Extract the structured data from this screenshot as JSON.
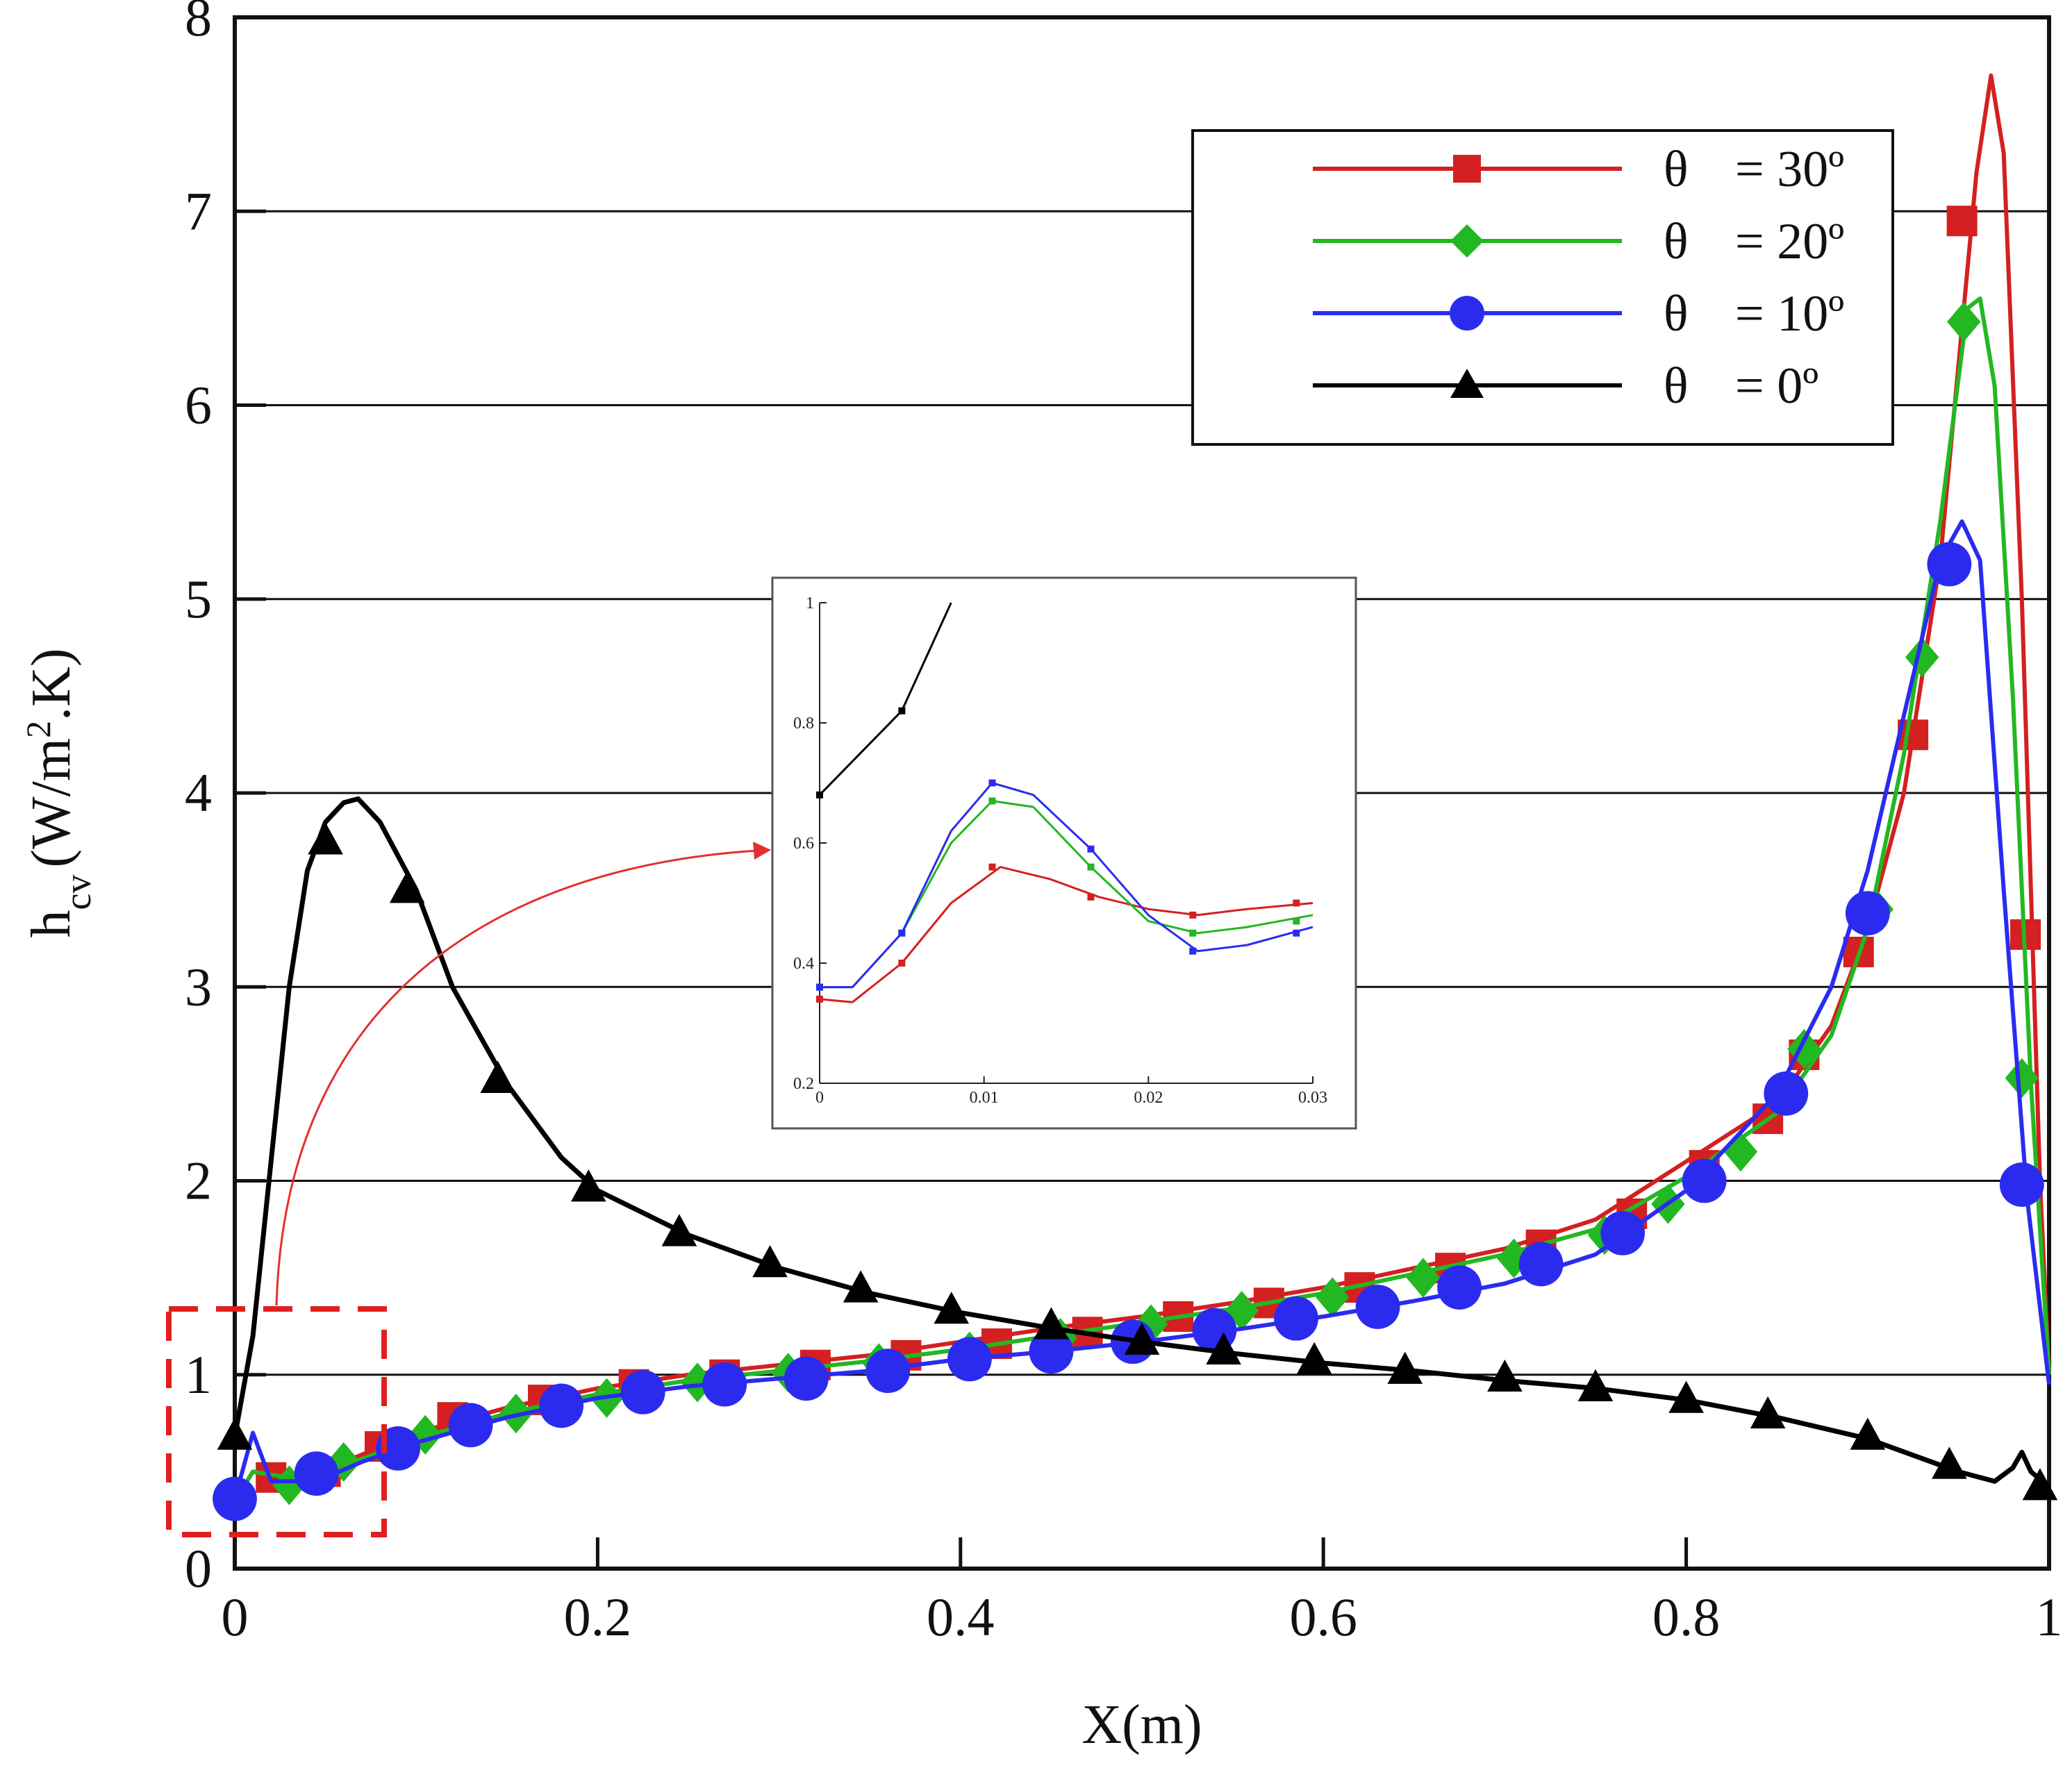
{
  "chart_data": {
    "type": "line",
    "title": "",
    "xlabel": "X(m)",
    "ylabel": "h_cv (W/m^2.K)",
    "ylabel_parts": {
      "base": "h",
      "sub": "cv",
      "unit_pre": "(W/m",
      "sup": "2",
      "unit_post": ".K)"
    },
    "xlim": [
      0,
      1
    ],
    "ylim": [
      0,
      8
    ],
    "xticks": [
      "0",
      "0.2",
      "0.4",
      "0.6",
      "0.8",
      "1"
    ],
    "yticks": [
      "0",
      "1",
      "2",
      "3",
      "4",
      "5",
      "6",
      "7",
      "8"
    ],
    "grid": "horizontal",
    "legend_position": "top-right",
    "series": [
      {
        "name": "θ = 30º",
        "symbol": "θ",
        "value_text": "= 30º",
        "color": "#d42020",
        "marker": "square",
        "curve": [
          [
            0,
            0.35
          ],
          [
            0.01,
            0.5
          ],
          [
            0.03,
            0.48
          ],
          [
            0.06,
            0.55
          ],
          [
            0.1,
            0.7
          ],
          [
            0.15,
            0.83
          ],
          [
            0.2,
            0.93
          ],
          [
            0.25,
            1.0
          ],
          [
            0.3,
            1.05
          ],
          [
            0.35,
            1.1
          ],
          [
            0.4,
            1.17
          ],
          [
            0.45,
            1.24
          ],
          [
            0.5,
            1.3
          ],
          [
            0.55,
            1.37
          ],
          [
            0.6,
            1.45
          ],
          [
            0.65,
            1.55
          ],
          [
            0.7,
            1.65
          ],
          [
            0.75,
            1.8
          ],
          [
            0.8,
            2.1
          ],
          [
            0.85,
            2.4
          ],
          [
            0.88,
            2.8
          ],
          [
            0.9,
            3.3
          ],
          [
            0.92,
            4.0
          ],
          [
            0.94,
            5.2
          ],
          [
            0.96,
            7.2
          ],
          [
            0.968,
            7.7
          ],
          [
            0.975,
            7.3
          ],
          [
            0.985,
            5.0
          ],
          [
            0.995,
            2.0
          ],
          [
            1.0,
            1.0
          ]
        ],
        "markers": [
          [
            0.02,
            0.47
          ],
          [
            0.05,
            0.5
          ],
          [
            0.08,
            0.63
          ],
          [
            0.12,
            0.78
          ],
          [
            0.17,
            0.87
          ],
          [
            0.22,
            0.95
          ],
          [
            0.27,
            1.0
          ],
          [
            0.32,
            1.05
          ],
          [
            0.37,
            1.1
          ],
          [
            0.42,
            1.16
          ],
          [
            0.47,
            1.22
          ],
          [
            0.52,
            1.3
          ],
          [
            0.57,
            1.37
          ],
          [
            0.62,
            1.45
          ],
          [
            0.67,
            1.55
          ],
          [
            0.72,
            1.67
          ],
          [
            0.77,
            1.83
          ],
          [
            0.81,
            2.08
          ],
          [
            0.845,
            2.32
          ],
          [
            0.865,
            2.65
          ],
          [
            0.895,
            3.18
          ],
          [
            0.925,
            4.3
          ],
          [
            0.952,
            6.95
          ],
          [
            0.987,
            3.27
          ]
        ]
      },
      {
        "name": "θ = 20º",
        "symbol": "θ",
        "value_text": "= 20º",
        "color": "#22b822",
        "marker": "diamond",
        "curve": [
          [
            0,
            0.35
          ],
          [
            0.01,
            0.5
          ],
          [
            0.03,
            0.47
          ],
          [
            0.06,
            0.53
          ],
          [
            0.1,
            0.67
          ],
          [
            0.15,
            0.8
          ],
          [
            0.2,
            0.9
          ],
          [
            0.25,
            0.97
          ],
          [
            0.3,
            1.02
          ],
          [
            0.35,
            1.07
          ],
          [
            0.4,
            1.13
          ],
          [
            0.45,
            1.2
          ],
          [
            0.5,
            1.27
          ],
          [
            0.55,
            1.34
          ],
          [
            0.6,
            1.42
          ],
          [
            0.65,
            1.52
          ],
          [
            0.7,
            1.62
          ],
          [
            0.75,
            1.75
          ],
          [
            0.8,
            2.02
          ],
          [
            0.85,
            2.35
          ],
          [
            0.88,
            2.75
          ],
          [
            0.9,
            3.3
          ],
          [
            0.92,
            4.2
          ],
          [
            0.94,
            5.4
          ],
          [
            0.955,
            6.5
          ],
          [
            0.962,
            6.55
          ],
          [
            0.97,
            6.1
          ],
          [
            0.98,
            4.5
          ],
          [
            0.99,
            2.5
          ],
          [
            1.0,
            1.0
          ]
        ],
        "markers": [
          [
            0.03,
            0.43
          ],
          [
            0.06,
            0.55
          ],
          [
            0.105,
            0.69
          ],
          [
            0.155,
            0.8
          ],
          [
            0.205,
            0.88
          ],
          [
            0.255,
            0.96
          ],
          [
            0.305,
            1.01
          ],
          [
            0.355,
            1.06
          ],
          [
            0.405,
            1.12
          ],
          [
            0.455,
            1.19
          ],
          [
            0.505,
            1.26
          ],
          [
            0.555,
            1.33
          ],
          [
            0.605,
            1.4
          ],
          [
            0.655,
            1.5
          ],
          [
            0.705,
            1.6
          ],
          [
            0.755,
            1.72
          ],
          [
            0.79,
            1.88
          ],
          [
            0.83,
            2.15
          ],
          [
            0.865,
            2.68
          ],
          [
            0.905,
            3.4
          ],
          [
            0.93,
            4.7
          ],
          [
            0.953,
            6.43
          ],
          [
            0.985,
            2.53
          ]
        ]
      },
      {
        "name": "θ = 10º",
        "symbol": "θ",
        "value_text": "= 10º",
        "color": "#2b2bf0",
        "marker": "circle",
        "curve": [
          [
            0,
            0.36
          ],
          [
            0.01,
            0.7
          ],
          [
            0.02,
            0.45
          ],
          [
            0.045,
            0.45
          ],
          [
            0.07,
            0.55
          ],
          [
            0.1,
            0.65
          ],
          [
            0.15,
            0.78
          ],
          [
            0.2,
            0.88
          ],
          [
            0.25,
            0.94
          ],
          [
            0.3,
            0.98
          ],
          [
            0.35,
            1.02
          ],
          [
            0.4,
            1.08
          ],
          [
            0.45,
            1.12
          ],
          [
            0.5,
            1.17
          ],
          [
            0.55,
            1.23
          ],
          [
            0.6,
            1.3
          ],
          [
            0.65,
            1.38
          ],
          [
            0.7,
            1.47
          ],
          [
            0.75,
            1.62
          ],
          [
            0.8,
            1.95
          ],
          [
            0.85,
            2.45
          ],
          [
            0.88,
            3.0
          ],
          [
            0.9,
            3.6
          ],
          [
            0.92,
            4.4
          ],
          [
            0.94,
            5.2
          ],
          [
            0.952,
            5.4
          ],
          [
            0.962,
            5.2
          ],
          [
            0.975,
            3.5
          ],
          [
            0.988,
            1.9
          ],
          [
            1.0,
            0.95
          ]
        ],
        "markers": [
          [
            0,
            0.36
          ],
          [
            0.045,
            0.49
          ],
          [
            0.09,
            0.62
          ],
          [
            0.13,
            0.74
          ],
          [
            0.18,
            0.84
          ],
          [
            0.225,
            0.91
          ],
          [
            0.27,
            0.95
          ],
          [
            0.315,
            0.98
          ],
          [
            0.36,
            1.02
          ],
          [
            0.405,
            1.08
          ],
          [
            0.45,
            1.12
          ],
          [
            0.495,
            1.17
          ],
          [
            0.54,
            1.23
          ],
          [
            0.585,
            1.29
          ],
          [
            0.63,
            1.35
          ],
          [
            0.675,
            1.45
          ],
          [
            0.72,
            1.57
          ],
          [
            0.765,
            1.73
          ],
          [
            0.81,
            2.0
          ],
          [
            0.855,
            2.45
          ],
          [
            0.9,
            3.38
          ],
          [
            0.945,
            5.18
          ],
          [
            0.985,
            1.98
          ]
        ]
      },
      {
        "name": "θ = 0º",
        "symbol": "θ",
        "value_text": "= 0º",
        "color": "#000000",
        "marker": "triangle",
        "curve": [
          [
            0,
            0.68
          ],
          [
            0.01,
            1.2
          ],
          [
            0.02,
            2.1
          ],
          [
            0.03,
            3.0
          ],
          [
            0.04,
            3.6
          ],
          [
            0.05,
            3.85
          ],
          [
            0.06,
            3.95
          ],
          [
            0.068,
            3.97
          ],
          [
            0.08,
            3.85
          ],
          [
            0.1,
            3.5
          ],
          [
            0.12,
            3.0
          ],
          [
            0.15,
            2.5
          ],
          [
            0.18,
            2.12
          ],
          [
            0.2,
            1.95
          ],
          [
            0.25,
            1.72
          ],
          [
            0.3,
            1.55
          ],
          [
            0.35,
            1.42
          ],
          [
            0.4,
            1.32
          ],
          [
            0.45,
            1.24
          ],
          [
            0.5,
            1.17
          ],
          [
            0.55,
            1.11
          ],
          [
            0.6,
            1.06
          ],
          [
            0.65,
            1.02
          ],
          [
            0.7,
            0.97
          ],
          [
            0.75,
            0.93
          ],
          [
            0.8,
            0.87
          ],
          [
            0.85,
            0.78
          ],
          [
            0.9,
            0.67
          ],
          [
            0.95,
            0.5
          ],
          [
            0.97,
            0.45
          ],
          [
            0.98,
            0.52
          ],
          [
            0.985,
            0.6
          ],
          [
            0.99,
            0.5
          ],
          [
            1.0,
            0.42
          ]
        ],
        "markers": [
          [
            0,
            0.68
          ],
          [
            0.05,
            3.75
          ],
          [
            0.095,
            3.5
          ],
          [
            0.145,
            2.52
          ],
          [
            0.195,
            1.96
          ],
          [
            0.245,
            1.73
          ],
          [
            0.295,
            1.57
          ],
          [
            0.345,
            1.44
          ],
          [
            0.395,
            1.33
          ],
          [
            0.45,
            1.25
          ],
          [
            0.5,
            1.17
          ],
          [
            0.545,
            1.12
          ],
          [
            0.595,
            1.07
          ],
          [
            0.645,
            1.02
          ],
          [
            0.7,
            0.98
          ],
          [
            0.75,
            0.93
          ],
          [
            0.8,
            0.87
          ],
          [
            0.845,
            0.79
          ],
          [
            0.9,
            0.68
          ],
          [
            0.945,
            0.53
          ],
          [
            0.995,
            0.42
          ]
        ]
      }
    ],
    "inset": {
      "xlim": [
        0,
        0.03
      ],
      "ylim": [
        0.2,
        1
      ],
      "xticks": [
        "0",
        "0.01",
        "0.02",
        "0.03"
      ],
      "yticks": [
        "0.2",
        "0.4",
        "0.6",
        "0.8",
        "1"
      ],
      "series": [
        {
          "name": "θ = 0º",
          "color": "#000000",
          "curve": [
            [
              0,
              0.68
            ],
            [
              0.005,
              0.82
            ],
            [
              0.008,
              1.0
            ]
          ],
          "markers": [
            [
              0,
              0.68
            ],
            [
              0.005,
              0.82
            ]
          ]
        },
        {
          "name": "θ = 30º",
          "color": "#d42020",
          "curve": [
            [
              0,
              0.34
            ],
            [
              0.002,
              0.335
            ],
            [
              0.005,
              0.4
            ],
            [
              0.008,
              0.5
            ],
            [
              0.011,
              0.56
            ],
            [
              0.014,
              0.54
            ],
            [
              0.017,
              0.51
            ],
            [
              0.02,
              0.49
            ],
            [
              0.023,
              0.48
            ],
            [
              0.026,
              0.49
            ],
            [
              0.03,
              0.5
            ]
          ],
          "markers": [
            [
              0,
              0.34
            ],
            [
              0.005,
              0.4
            ],
            [
              0.0105,
              0.56
            ],
            [
              0.0165,
              0.51
            ],
            [
              0.0227,
              0.48
            ],
            [
              0.029,
              0.5
            ]
          ]
        },
        {
          "name": "θ = 20º",
          "color": "#22b822",
          "curve": [
            [
              0,
              0.36
            ],
            [
              0.002,
              0.36
            ],
            [
              0.005,
              0.45
            ],
            [
              0.008,
              0.6
            ],
            [
              0.0105,
              0.67
            ],
            [
              0.013,
              0.66
            ],
            [
              0.0165,
              0.56
            ],
            [
              0.02,
              0.47
            ],
            [
              0.023,
              0.45
            ],
            [
              0.026,
              0.46
            ],
            [
              0.03,
              0.48
            ]
          ],
          "markers": [
            [
              0,
              0.36
            ],
            [
              0.005,
              0.45
            ],
            [
              0.0105,
              0.67
            ],
            [
              0.0165,
              0.56
            ],
            [
              0.0227,
              0.45
            ],
            [
              0.029,
              0.47
            ]
          ]
        },
        {
          "name": "θ = 10º",
          "color": "#2b2bf0",
          "curve": [
            [
              0,
              0.36
            ],
            [
              0.002,
              0.36
            ],
            [
              0.005,
              0.45
            ],
            [
              0.008,
              0.62
            ],
            [
              0.0105,
              0.7
            ],
            [
              0.013,
              0.68
            ],
            [
              0.0165,
              0.59
            ],
            [
              0.02,
              0.48
            ],
            [
              0.023,
              0.42
            ],
            [
              0.026,
              0.43
            ],
            [
              0.03,
              0.46
            ]
          ],
          "markers": [
            [
              0,
              0.36
            ],
            [
              0.005,
              0.45
            ],
            [
              0.0105,
              0.7
            ],
            [
              0.0165,
              0.59
            ],
            [
              0.0227,
              0.42
            ],
            [
              0.029,
              0.45
            ]
          ]
        }
      ]
    }
  }
}
